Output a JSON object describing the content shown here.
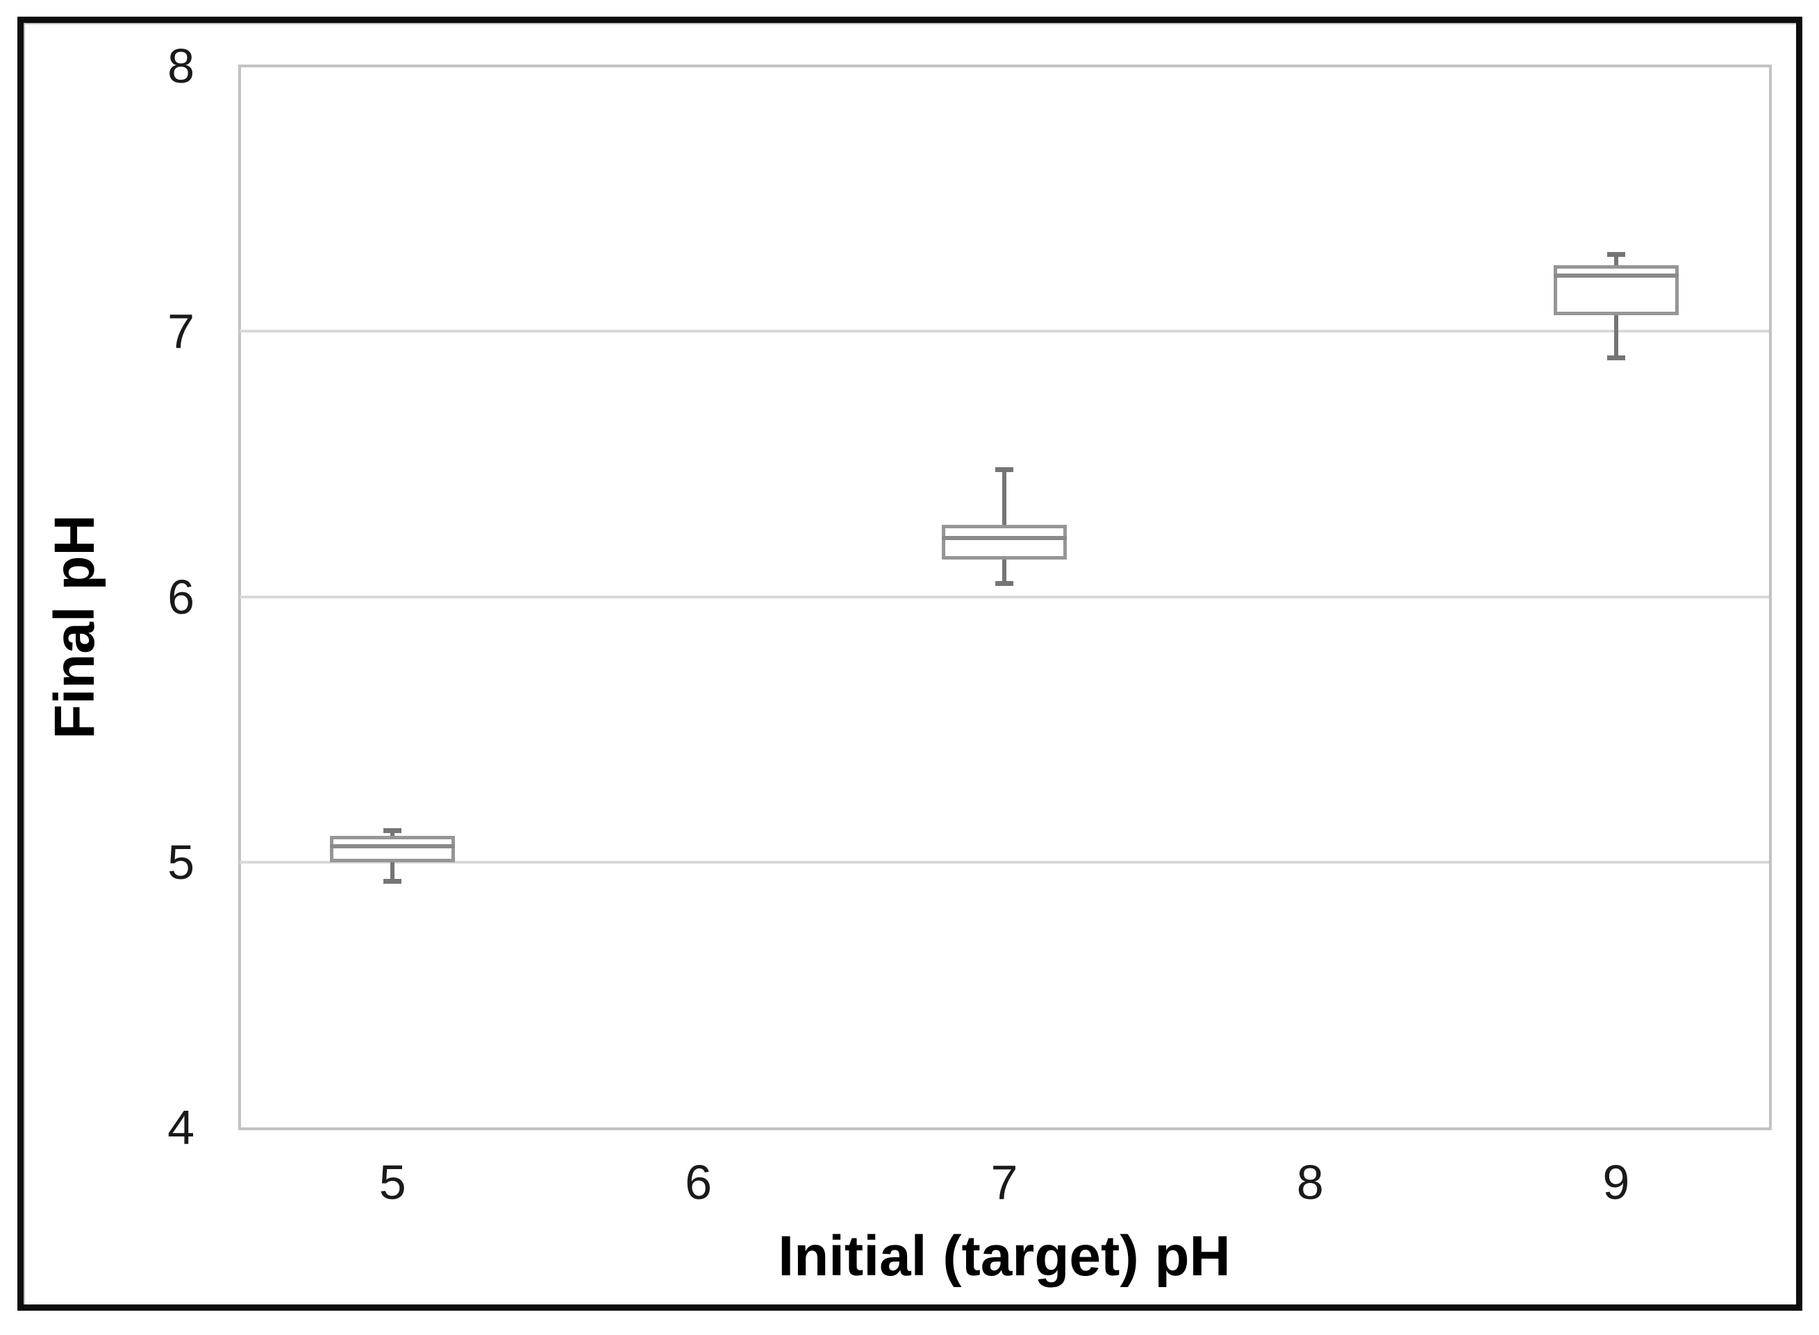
{
  "figure": {
    "background_color": "#ffffff",
    "frame_color": "#0d0d0d"
  },
  "chart_data": {
    "type": "boxplot",
    "title": "",
    "xlabel": "Initial (target) pH",
    "ylabel": "Final pH",
    "x_categories": [
      "5",
      "6",
      "7",
      "8",
      "9"
    ],
    "y_ticks": [
      4,
      5,
      6,
      7,
      8
    ],
    "ylim": [
      4,
      8
    ],
    "grid": {
      "horizontal": true,
      "lines_at": [
        5,
        6,
        7
      ],
      "color": "#d9d9d9"
    },
    "legend": {
      "visible": false
    },
    "boxes": [
      {
        "category": "5",
        "whisker_low": 4.93,
        "q1": 5.0,
        "median": 5.06,
        "q3": 5.1,
        "whisker_high": 5.12
      },
      {
        "category": "7",
        "whisker_low": 6.05,
        "q1": 6.14,
        "median": 6.22,
        "q3": 6.27,
        "whisker_high": 6.48
      },
      {
        "category": "9",
        "whisker_low": 6.9,
        "q1": 7.06,
        "median": 7.21,
        "q3": 7.25,
        "whisker_high": 7.29
      }
    ],
    "colors": {
      "box_stroke": "#969696",
      "box_fill": "#ffffff",
      "median": "#8a8a8a",
      "whisker": "#757575",
      "gridline": "#d9d9d9",
      "plot_border": "#c2c2c2",
      "tick_text": "#1a1a1a"
    }
  }
}
